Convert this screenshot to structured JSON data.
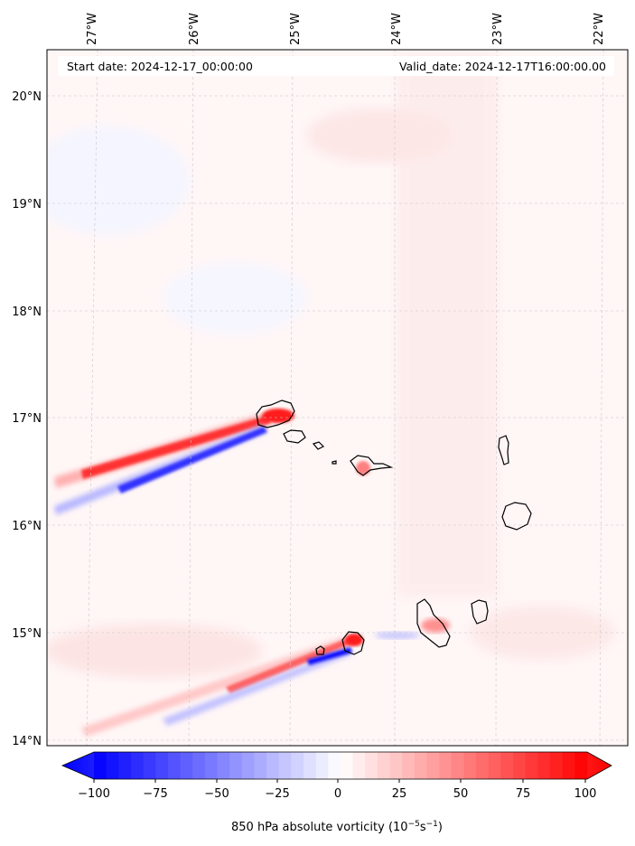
{
  "header": {
    "start_date": "Start date: 2024-12-17_00:00:00",
    "valid_date": "Valid_date: 2024-12-17T16:00:00.00"
  },
  "lon_labels": [
    "27°W",
    "26°W",
    "25°W",
    "24°W",
    "23°W",
    "22°W"
  ],
  "lat_labels": [
    "20°N",
    "19°N",
    "18°N",
    "17°N",
    "16°N",
    "15°N",
    "14°N"
  ],
  "colorbar": {
    "ticks": [
      "−100",
      "−75",
      "−50",
      "−25",
      "0",
      "25",
      "50",
      "75",
      "100"
    ],
    "label_main": "850 hPa absolute vorticity (10",
    "label_sup1": "−5",
    "label_mid": "s",
    "label_sup2": "−1",
    "label_end": ")",
    "min": -100,
    "max": 100,
    "low_color": "#0000ff",
    "mid_color": "#ffffff",
    "high_color": "#ff0000"
  }
}
